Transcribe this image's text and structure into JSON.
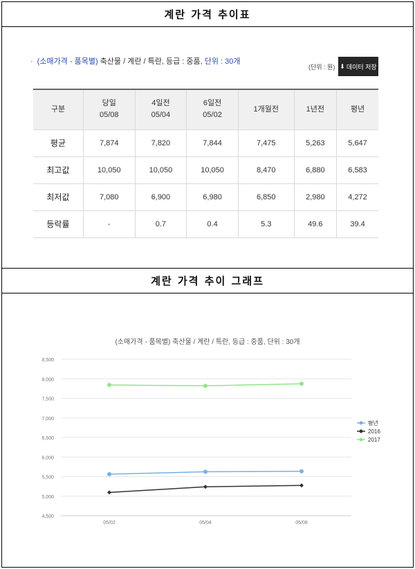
{
  "table_section": {
    "title": "계란 가격 추이표",
    "info_bullet": "·",
    "info_prefix": "(소매가격 - 품목별)",
    "info_middle": " 축산물 / 계란 / 특란, 등급 : 중품, ",
    "info_unit": "단위 : 30개",
    "unit_label": "(단위 : 원)",
    "save_button": "데이터 저장",
    "download_icon": "download-icon",
    "headers": [
      {
        "line1": "구분",
        "line2": ""
      },
      {
        "line1": "당일",
        "line2": "05/08"
      },
      {
        "line1": "4일전",
        "line2": "05/04"
      },
      {
        "line1": "6일전",
        "line2": "05/02"
      },
      {
        "line1": "1개월전",
        "line2": ""
      },
      {
        "line1": "1년전",
        "line2": ""
      },
      {
        "line1": "평년",
        "line2": ""
      }
    ],
    "rows": [
      {
        "label": "평균",
        "cells": [
          "7,874",
          "7,820",
          "7,844",
          "7,475",
          "5,263",
          "5,647"
        ]
      },
      {
        "label": "최고값",
        "cells": [
          "10,050",
          "10,050",
          "10,050",
          "8,470",
          "6,880",
          "6,583"
        ]
      },
      {
        "label": "최저값",
        "cells": [
          "7,080",
          "6,900",
          "6,980",
          "6,850",
          "2,980",
          "4,272"
        ]
      },
      {
        "label": "등락률",
        "cells": [
          "-",
          "0.7",
          "0.4",
          "5.3",
          "49.6",
          "39.4"
        ]
      }
    ]
  },
  "chart_section": {
    "title": "계란 가격 추이 그래프"
  },
  "chart_data": {
    "type": "line",
    "title": "(소매가격 - 품목별) 축산물 / 계란 / 특란, 등급 : 중품, 단위 : 30개",
    "categories": [
      "05/02",
      "05/04",
      "05/08"
    ],
    "series": [
      {
        "name": "평년",
        "color": "#7aaee6",
        "values": [
          5563,
          5623,
          5636
        ]
      },
      {
        "name": "2016",
        "color": "#333333",
        "values": [
          5095,
          5238,
          5275
        ]
      },
      {
        "name": "2017",
        "color": "#90e58a",
        "values": [
          7844,
          7820,
          7874
        ]
      }
    ],
    "yticks": [
      "4,500",
      "5,000",
      "5,500",
      "6,000",
      "6,500",
      "7,000",
      "7,500",
      "8,000",
      "8,500"
    ],
    "ylim": [
      4500,
      8500
    ],
    "grid": true,
    "legend": "right"
  }
}
